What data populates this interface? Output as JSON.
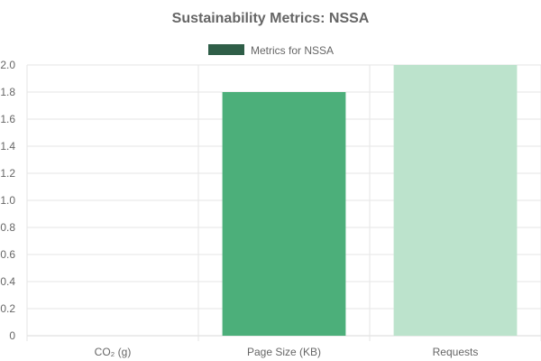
{
  "chart_data": {
    "type": "bar",
    "title": "Sustainability Metrics: NSSA",
    "legend": {
      "label": "Metrics for NSSA",
      "color": "#2f5e48",
      "position": "top-center"
    },
    "categories": [
      "CO₂ (g)",
      "Page Size (KB)",
      "Requests"
    ],
    "series": [
      {
        "name": "Metrics for NSSA",
        "values": [
          0,
          1.8,
          2.0
        ]
      }
    ],
    "bar_colors": [
      "#2f5e48",
      "#4caf7a",
      "#bce3cc"
    ],
    "ylim": [
      0,
      2.0
    ],
    "yticks": [
      "0",
      "0.2",
      "0.4",
      "0.6",
      "0.8",
      "1.0",
      "1.2",
      "1.4",
      "1.6",
      "1.8",
      "2.0"
    ],
    "ytick_values": [
      0,
      0.2,
      0.4,
      0.6,
      0.8,
      1.0,
      1.2,
      1.4,
      1.6,
      1.8,
      2.0
    ],
    "xlabel": "",
    "ylabel": "",
    "grid": true
  }
}
